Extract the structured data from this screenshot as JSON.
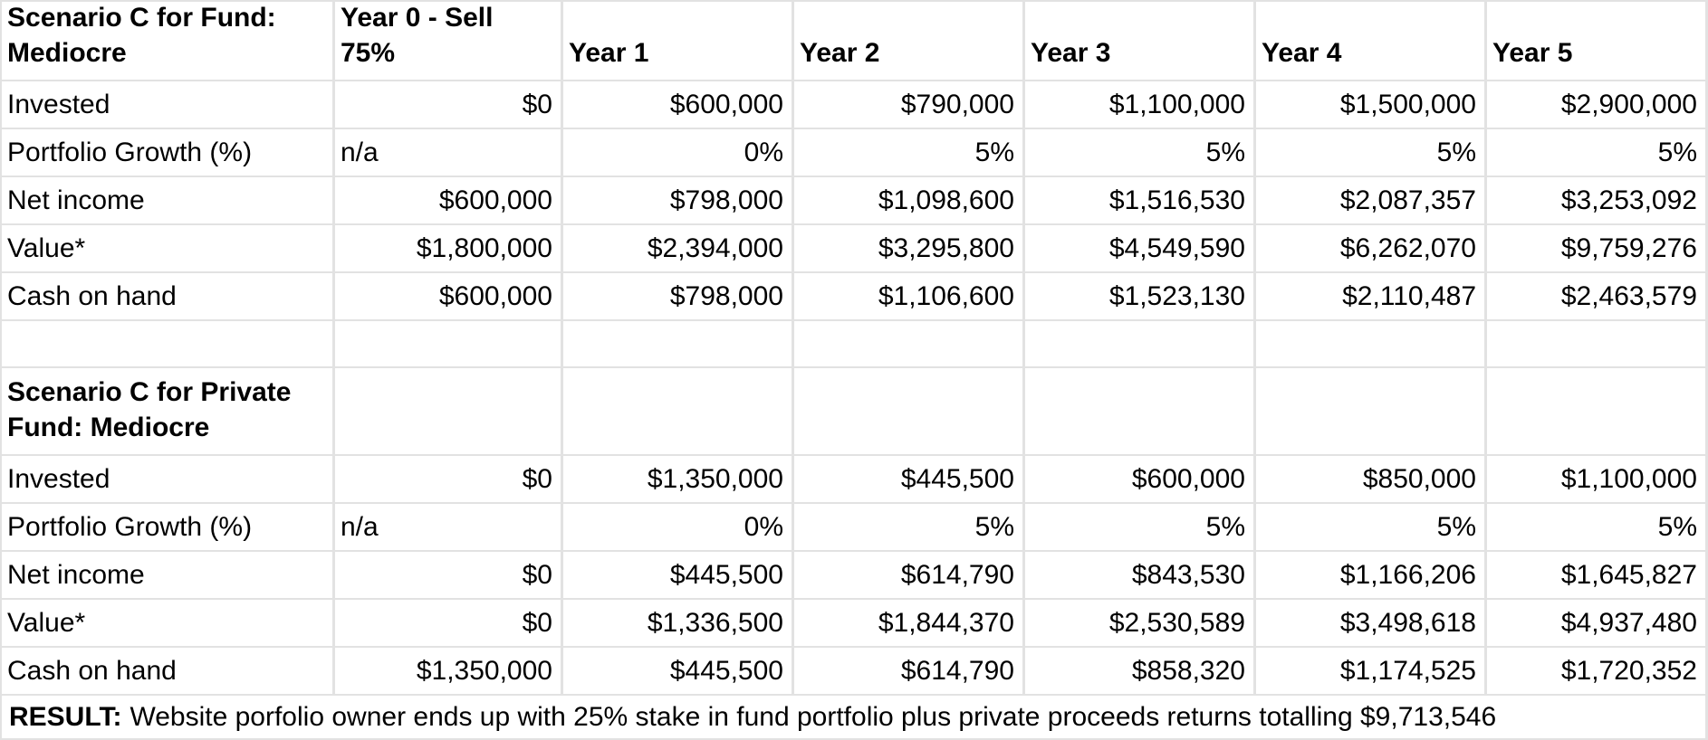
{
  "header_row": {
    "cells": [
      "Scenario C for Fund: Mediocre",
      "Year 0 - Sell 75%",
      "Year 1",
      "Year 2",
      "Year 3",
      "Year 4",
      "Year 5"
    ]
  },
  "section1": {
    "title": "Scenario C for Fund: Mediocre",
    "rows": [
      {
        "label": "Invested",
        "values": [
          "$0",
          "$600,000",
          "$790,000",
          "$1,100,000",
          "$1,500,000",
          "$2,900,000"
        ]
      },
      {
        "label": "Portfolio Growth (%)",
        "values": [
          "n/a",
          "0%",
          "5%",
          "5%",
          "5%",
          "5%"
        ]
      },
      {
        "label": "Net income",
        "values": [
          "$600,000",
          "$798,000",
          "$1,098,600",
          "$1,516,530",
          "$2,087,357",
          "$3,253,092"
        ]
      },
      {
        "label": "Value*",
        "values": [
          "$1,800,000",
          "$2,394,000",
          "$3,295,800",
          "$4,549,590",
          "$6,262,070",
          "$9,759,276"
        ]
      },
      {
        "label": "Cash on hand",
        "values": [
          "$600,000",
          "$798,000",
          "$1,106,600",
          "$1,523,130",
          "$2,110,487",
          "$2,463,579"
        ]
      }
    ]
  },
  "section2": {
    "title": "Scenario C for Private Fund: Mediocre",
    "rows": [
      {
        "label": "Invested",
        "values": [
          "$0",
          "$1,350,000",
          "$445,500",
          "$600,000",
          "$850,000",
          "$1,100,000"
        ]
      },
      {
        "label": "Portfolio Growth (%)",
        "values": [
          "n/a",
          "0%",
          "5%",
          "5%",
          "5%",
          "5%"
        ]
      },
      {
        "label": "Net income",
        "values": [
          "$0",
          "$445,500",
          "$614,790",
          "$843,530",
          "$1,166,206",
          "$1,645,827"
        ]
      },
      {
        "label": "Value*",
        "values": [
          "$0",
          "$1,336,500",
          "$1,844,370",
          "$2,530,589",
          "$3,498,618",
          "$4,937,480"
        ]
      },
      {
        "label": "Cash on hand",
        "values": [
          "$1,350,000",
          "$445,500",
          "$614,790",
          "$858,320",
          "$1,174,525",
          "$1,720,352"
        ]
      }
    ]
  },
  "result": {
    "label": "RESULT:",
    "text": "Website porfolio owner ends up with 25% stake in fund portfolio plus private proceeds returns totalling $9,713,546"
  },
  "colors": {
    "gridline": "#e2e2e2",
    "background": "#ffffff",
    "text": "#000000"
  }
}
